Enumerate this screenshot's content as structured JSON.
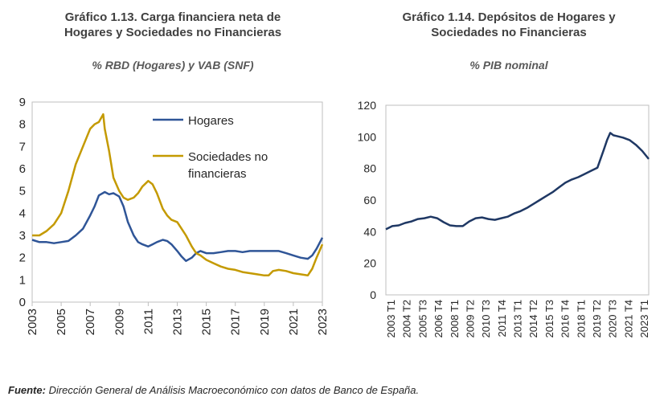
{
  "left": {
    "title_line1": "Gráfico 1.13. Carga financiera neta de",
    "title_line2": "Hogares y Sociedades no Financieras",
    "subtitle": "% RBD (Hogares) y VAB (SNF)"
  },
  "right": {
    "title_line1": "Gráfico 1.14. Depósitos de Hogares y",
    "title_line2": "Sociedades no Financieras",
    "subtitle": "% PIB nominal"
  },
  "source": {
    "label": "Fuente:",
    "text": " Dirección General de Análisis Macroeconómico con datos de Banco de España."
  },
  "chart_data": [
    {
      "type": "line",
      "title": "Gráfico 1.13. Carga financiera neta de Hogares y Sociedades no Financieras",
      "subtitle": "% RBD (Hogares) y VAB (SNF)",
      "x_ticks": [
        "2003",
        "2005",
        "2007",
        "2009",
        "2011",
        "2013",
        "2015",
        "2017",
        "2019",
        "2021",
        "2023"
      ],
      "y_ticks": [
        "0",
        "1",
        "2",
        "3",
        "4",
        "5",
        "6",
        "7",
        "8",
        "9"
      ],
      "ylim": [
        0,
        9
      ],
      "xlim": [
        2003,
        2023
      ],
      "grid": false,
      "legend_position": "top-right",
      "series": [
        {
          "name": "Hogares",
          "color": "#2F5597",
          "x": [
            2003,
            2003.5,
            2004,
            2004.5,
            2005,
            2005.5,
            2006,
            2006.5,
            2007,
            2007.3,
            2007.6,
            2008,
            2008.3,
            2008.6,
            2009,
            2009.3,
            2009.6,
            2010,
            2010.3,
            2010.6,
            2011,
            2011.3,
            2011.6,
            2012,
            2012.3,
            2012.6,
            2013,
            2013.3,
            2013.6,
            2014,
            2014.3,
            2014.6,
            2015,
            2015.5,
            2016,
            2016.5,
            2017,
            2017.5,
            2018,
            2018.5,
            2019,
            2019.5,
            2020,
            2020.5,
            2021,
            2021.5,
            2022,
            2022.3,
            2022.6,
            2023
          ],
          "y": [
            2.8,
            2.7,
            2.7,
            2.65,
            2.7,
            2.75,
            3.0,
            3.3,
            3.9,
            4.3,
            4.8,
            4.95,
            4.85,
            4.9,
            4.75,
            4.3,
            3.6,
            3.0,
            2.7,
            2.6,
            2.5,
            2.6,
            2.7,
            2.8,
            2.75,
            2.6,
            2.3,
            2.05,
            1.85,
            2.0,
            2.2,
            2.3,
            2.2,
            2.2,
            2.25,
            2.3,
            2.3,
            2.25,
            2.3,
            2.3,
            2.3,
            2.3,
            2.3,
            2.2,
            2.1,
            2.0,
            1.95,
            2.1,
            2.4,
            2.9
          ]
        },
        {
          "name": "Sociedades no financieras",
          "color": "#C49A00",
          "x": [
            2003,
            2003.5,
            2004,
            2004.5,
            2005,
            2005.5,
            2006,
            2006.5,
            2007,
            2007.3,
            2007.6,
            2007.9,
            2008,
            2008.3,
            2008.6,
            2009,
            2009.3,
            2009.6,
            2010,
            2010.3,
            2010.6,
            2011,
            2011.3,
            2011.6,
            2012,
            2012.3,
            2012.6,
            2013,
            2013.3,
            2013.6,
            2014,
            2014.3,
            2014.6,
            2015,
            2015.5,
            2016,
            2016.5,
            2017,
            2017.5,
            2018,
            2018.5,
            2019,
            2019.3,
            2019.6,
            2020,
            2020.5,
            2021,
            2021.5,
            2022,
            2022.3,
            2022.6,
            2023
          ],
          "y": [
            3.0,
            3.0,
            3.2,
            3.5,
            4.0,
            5.0,
            6.2,
            7.0,
            7.8,
            8.0,
            8.1,
            8.45,
            7.8,
            6.8,
            5.6,
            5.0,
            4.7,
            4.6,
            4.7,
            4.9,
            5.2,
            5.45,
            5.3,
            4.9,
            4.2,
            3.9,
            3.7,
            3.6,
            3.3,
            3.0,
            2.5,
            2.2,
            2.1,
            1.9,
            1.75,
            1.6,
            1.5,
            1.45,
            1.35,
            1.3,
            1.25,
            1.2,
            1.2,
            1.4,
            1.45,
            1.4,
            1.3,
            1.25,
            1.2,
            1.5,
            2.0,
            2.6
          ]
        }
      ]
    },
    {
      "type": "line",
      "title": "Gráfico 1.14. Depósitos de Hogares y Sociedades no Financieras",
      "subtitle": "% PIB nominal",
      "x_ticks": [
        "2003 T1",
        "2004 T2",
        "2005 T3",
        "2006 T4",
        "2008 T1",
        "2009 T2",
        "2010 T3",
        "2011 T4",
        "2013 T1",
        "2014 T2",
        "2015 T3",
        "2016 T4",
        "2018 T1",
        "2019 T2",
        "2020 T3",
        "2021 T4",
        "2023 T1"
      ],
      "y_ticks": [
        "0",
        "20",
        "40",
        "60",
        "80",
        "100",
        "120"
      ],
      "ylim": [
        0,
        120
      ],
      "grid": false,
      "series": [
        {
          "color": "#1F3864",
          "x": [
            2003.0,
            2003.5,
            2004.0,
            2004.5,
            2005.0,
            2005.5,
            2006.0,
            2006.5,
            2007.0,
            2007.5,
            2008.0,
            2008.5,
            2009.0,
            2009.5,
            2010.0,
            2010.5,
            2011.0,
            2011.5,
            2012.0,
            2012.5,
            2013.0,
            2013.5,
            2014.0,
            2014.5,
            2015.0,
            2015.5,
            2016.0,
            2016.5,
            2017.0,
            2017.5,
            2018.0,
            2018.5,
            2019.0,
            2019.5,
            2020.0,
            2020.25,
            2020.5,
            2020.75,
            2021.0,
            2021.5,
            2022.0,
            2022.5,
            2023.0,
            2023.5
          ],
          "y": [
            41.5,
            43.5,
            44,
            45.5,
            46.5,
            48,
            48.5,
            49.5,
            48.5,
            46,
            44,
            43.5,
            43.5,
            46.5,
            48.5,
            49,
            48,
            47.5,
            48.5,
            49.5,
            51.5,
            53,
            55,
            57.5,
            60,
            62.5,
            65,
            68,
            71,
            73,
            74.5,
            76.5,
            78.5,
            80.5,
            92,
            98,
            102.5,
            101,
            100.5,
            99.5,
            98,
            95,
            91,
            86
          ]
        }
      ]
    }
  ]
}
